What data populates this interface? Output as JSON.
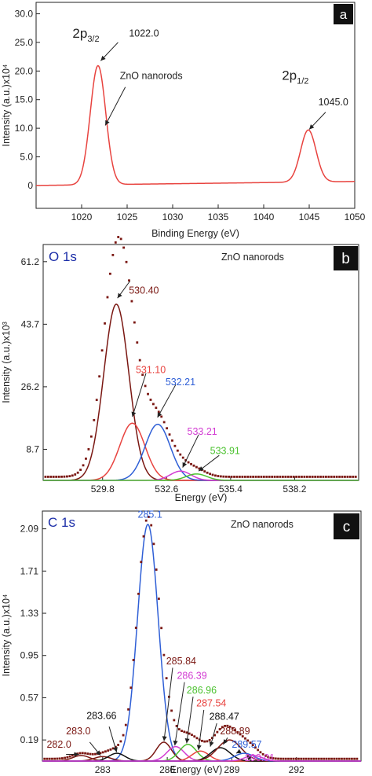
{
  "chart_data": [
    {
      "type": "line",
      "panel_label": "a",
      "xlabel": "Binding Energy (eV)",
      "ylabel": "Intensity (a.u.)x10⁴",
      "xlim": [
        1015,
        1050
      ],
      "ylim": [
        -4,
        32
      ],
      "xticks": [
        1020,
        1025,
        1030,
        1035,
        1040,
        1045,
        1050
      ],
      "yticks": [
        {
          "v": 0,
          "label": "0"
        },
        {
          "v": 5,
          "label": "5.0"
        },
        {
          "v": 10,
          "label": "10.0"
        },
        {
          "v": 15,
          "label": "15.0"
        },
        {
          "v": 20,
          "label": "20.0"
        },
        {
          "v": 25,
          "label": "25.0"
        },
        {
          "v": 30,
          "label": "30.0"
        }
      ],
      "series": [
        {
          "color": "#e8433f",
          "peaks": [
            {
              "center": 1021.8,
              "height": 20.8,
              "sigma": 0.85
            },
            {
              "center": 1044.9,
              "height": 9.1,
              "sigma": 0.85
            }
          ],
          "baseline": [
            [
              1015,
              0.0
            ],
            [
              1050,
              0.7
            ]
          ]
        }
      ],
      "annotations": [
        {
          "text": "2p",
          "sub": "3/2",
          "x": 1019.0,
          "y": 25.8
        },
        {
          "text": "2p",
          "sub": "1/2",
          "x": 1042.0,
          "y": 18.5
        },
        {
          "text": "1022.0",
          "x": 1025.2,
          "y": 26.0
        },
        {
          "text": "ZnO nanorods",
          "x": 1024.2,
          "y": 18.6
        },
        {
          "text": "1045.0",
          "x": 1046.0,
          "y": 14.0
        }
      ],
      "arrows": [
        {
          "from": [
            1024.0,
            25.0
          ],
          "to": [
            1022.1,
            21.8
          ]
        },
        {
          "from": [
            1024.8,
            17.2
          ],
          "to": [
            1022.6,
            10.5
          ]
        },
        {
          "from": [
            1046.8,
            12.8
          ],
          "to": [
            1045.0,
            9.8
          ]
        }
      ]
    },
    {
      "type": "line",
      "panel_label": "b",
      "element_label": "O 1s",
      "sample_label": "ZnO nanorods",
      "xlabel": "Energy (eV)",
      "ylabel": "Intensity (a.u.)x10³",
      "xlim": [
        527.2,
        541.0
      ],
      "ylim": [
        0,
        66
      ],
      "xticks": [
        {
          "v": 529.8,
          "label": "529.8"
        },
        {
          "v": 532.6,
          "label": "532.6"
        },
        {
          "v": 535.4,
          "label": "535.4"
        },
        {
          "v": 538.2,
          "label": "538.2"
        }
      ],
      "yticks": [
        {
          "v": 8.7,
          "label": "8.7"
        },
        {
          "v": 26.2,
          "label": "26.2"
        },
        {
          "v": 43.7,
          "label": "43.7"
        },
        {
          "v": 61.2,
          "label": "61.2"
        }
      ],
      "series": [
        {
          "color": "#7a1712",
          "peaks": [
            {
              "center": 530.4,
              "height": 49.3,
              "sigma": 0.55
            }
          ]
        },
        {
          "color": "#e8433f",
          "peaks": [
            {
              "center": 531.1,
              "height": 16.0,
              "sigma": 0.55
            }
          ]
        },
        {
          "color": "#2f5fd6",
          "peaks": [
            {
              "center": 532.21,
              "height": 15.7,
              "sigma": 0.55
            }
          ]
        },
        {
          "color": "#d23bd2",
          "peaks": [
            {
              "center": 533.21,
              "height": 2.6,
              "sigma": 0.45
            }
          ]
        },
        {
          "color": "#4cc230",
          "peaks": [
            {
              "center": 533.91,
              "height": 1.8,
              "sigma": 0.45
            }
          ]
        }
      ],
      "points": {
        "color": "#7a1712",
        "x_range": [
          527.3,
          540.9
        ],
        "step": 0.118,
        "tail": 1.0,
        "peaks": [
          {
            "center": 530.4,
            "height": 59.0,
            "sigma": 0.6
          },
          {
            "center": 531.1,
            "height": 16.0,
            "sigma": 0.55
          },
          {
            "center": 532.21,
            "height": 15.7,
            "sigma": 0.55
          },
          {
            "center": 533.21,
            "height": 2.6,
            "sigma": 0.45
          },
          {
            "center": 533.91,
            "height": 1.8,
            "sigma": 0.45
          }
        ]
      },
      "annotations": [
        {
          "text": "530.40",
          "x": 530.95,
          "y": 52.2,
          "color": "#7a1712"
        },
        {
          "text": "531.10",
          "x": 531.25,
          "y": 30.0,
          "color": "#e8433f"
        },
        {
          "text": "532.21",
          "x": 532.55,
          "y": 26.6,
          "color": "#2f5fd6"
        },
        {
          "text": "533.21",
          "x": 533.5,
          "y": 12.8,
          "color": "#d23bd2"
        },
        {
          "text": "533.91",
          "x": 534.5,
          "y": 7.4,
          "color": "#4cc230"
        }
      ],
      "arrows": [
        {
          "from": [
            531.0,
            55.8
          ],
          "to": [
            530.45,
            51.0
          ],
          "color": "#222"
        },
        {
          "from": [
            531.7,
            30.0
          ],
          "to": [
            531.1,
            17.8
          ],
          "color": "#222"
        },
        {
          "from": [
            533.0,
            26.8
          ],
          "to": [
            532.2,
            17.6
          ],
          "color": "#222"
        },
        {
          "from": [
            534.0,
            12.8
          ],
          "to": [
            533.3,
            3.6
          ],
          "color": "#222"
        },
        {
          "from": [
            534.9,
            7.0
          ],
          "to": [
            534.0,
            2.6
          ],
          "color": "#222"
        }
      ]
    },
    {
      "type": "line",
      "panel_label": "c",
      "element_label": "C 1s",
      "sample_label": "ZnO nanorods",
      "xlabel": "Energy (eV)",
      "ylabel": "Intensity (a.u.)x10⁴",
      "xlim": [
        280.2,
        295.0
      ],
      "ylim": [
        0,
        2.25
      ],
      "xticks": [
        {
          "v": 283,
          "label": "283"
        },
        {
          "v": 286,
          "label": "286"
        },
        {
          "v": 289,
          "label": "289"
        },
        {
          "v": 292,
          "label": "292"
        }
      ],
      "yticks": [
        {
          "v": 0.19,
          "label": "0.19"
        },
        {
          "v": 0.57,
          "label": "0.57"
        },
        {
          "v": 0.95,
          "label": "0.95"
        },
        {
          "v": 1.33,
          "label": "1.33"
        },
        {
          "v": 1.71,
          "label": "1.71"
        },
        {
          "v": 2.09,
          "label": "2.09"
        }
      ],
      "series": [
        {
          "color": "#2f5fd6",
          "peaks": [
            {
              "center": 285.1,
              "height": 2.13,
              "sigma": 0.48
            }
          ]
        },
        {
          "color": "#7a1712",
          "peaks": [
            {
              "center": 282.0,
              "height": 0.05,
              "sigma": 0.4
            }
          ]
        },
        {
          "color": "#7a1712",
          "peaks": [
            {
              "center": 283.0,
              "height": 0.04,
              "sigma": 0.4
            }
          ]
        },
        {
          "color": "#111111",
          "peaks": [
            {
              "center": 283.66,
              "height": 0.07,
              "sigma": 0.38
            }
          ]
        },
        {
          "color": "#7a1712",
          "peaks": [
            {
              "center": 285.84,
              "height": 0.17,
              "sigma": 0.35
            }
          ]
        },
        {
          "color": "#d23bd2",
          "peaks": [
            {
              "center": 286.39,
              "height": 0.13,
              "sigma": 0.4
            }
          ]
        },
        {
          "color": "#4cc230",
          "peaks": [
            {
              "center": 286.96,
              "height": 0.15,
              "sigma": 0.4
            }
          ]
        },
        {
          "color": "#e8433f",
          "peaks": [
            {
              "center": 287.54,
              "height": 0.09,
              "sigma": 0.4
            }
          ]
        },
        {
          "color": "#111111",
          "peaks": [
            {
              "center": 288.47,
              "height": 0.12,
              "sigma": 0.45
            }
          ]
        },
        {
          "color": "#7a1712",
          "peaks": [
            {
              "center": 288.89,
              "height": 0.19,
              "sigma": 0.55
            }
          ]
        },
        {
          "color": "#2f5fd6",
          "peaks": [
            {
              "center": 289.57,
              "height": 0.07,
              "sigma": 0.45
            }
          ]
        },
        {
          "color": "#d23bd2",
          "peaks": [
            {
              "center": 290.01,
              "height": 0.05,
              "sigma": 0.4
            }
          ]
        }
      ],
      "points": {
        "color": "#7a1712",
        "x_range": [
          280.3,
          294.9
        ],
        "step": 0.118,
        "tail": 0.02,
        "peaks": [
          {
            "center": 282.0,
            "height": 0.05,
            "sigma": 0.4
          },
          {
            "center": 283.0,
            "height": 0.04,
            "sigma": 0.4
          },
          {
            "center": 283.66,
            "height": 0.07,
            "sigma": 0.38
          },
          {
            "center": 285.1,
            "height": 2.16,
            "sigma": 0.5
          },
          {
            "center": 285.84,
            "height": 0.17,
            "sigma": 0.35
          },
          {
            "center": 286.39,
            "height": 0.13,
            "sigma": 0.4
          },
          {
            "center": 286.96,
            "height": 0.15,
            "sigma": 0.4
          },
          {
            "center": 287.54,
            "height": 0.09,
            "sigma": 0.4
          },
          {
            "center": 288.47,
            "height": 0.12,
            "sigma": 0.45
          },
          {
            "center": 288.89,
            "height": 0.19,
            "sigma": 0.55
          },
          {
            "center": 289.57,
            "height": 0.07,
            "sigma": 0.45
          },
          {
            "center": 290.01,
            "height": 0.05,
            "sigma": 0.4
          }
        ]
      },
      "annotations": [
        {
          "text": "285.1",
          "x": 285.2,
          "y": 2.19,
          "color": "#2f5fd6",
          "anchor": "middle"
        },
        {
          "text": "285.84",
          "x": 285.95,
          "y": 0.87,
          "color": "#7a1712"
        },
        {
          "text": "286.39",
          "x": 286.45,
          "y": 0.74,
          "color": "#d23bd2"
        },
        {
          "text": "286.96",
          "x": 286.9,
          "y": 0.61,
          "color": "#4cc230"
        },
        {
          "text": "287.54",
          "x": 287.35,
          "y": 0.49,
          "color": "#e8433f"
        },
        {
          "text": "288.47",
          "x": 287.95,
          "y": 0.37,
          "color": "#111111"
        },
        {
          "text": "288.89",
          "x": 288.45,
          "y": 0.24,
          "color": "#7a1712"
        },
        {
          "text": "289.57",
          "x": 289.0,
          "y": 0.12,
          "color": "#2f5fd6"
        },
        {
          "text": "290.01",
          "x": 289.6,
          "y": 0.0,
          "color": "#d23bd2"
        },
        {
          "text": "283.66",
          "x": 282.25,
          "y": 0.38,
          "color": "#111111"
        },
        {
          "text": "283.0",
          "x": 281.3,
          "y": 0.24,
          "color": "#7a1712"
        },
        {
          "text": "282.0",
          "x": 280.4,
          "y": 0.12,
          "color": "#7a1712"
        }
      ],
      "arrows": [
        {
          "from": [
            286.25,
            0.84
          ],
          "to": [
            285.85,
            0.18
          ],
          "color": "#222"
        },
        {
          "from": [
            286.8,
            0.71
          ],
          "to": [
            286.35,
            0.14
          ],
          "color": "#222"
        },
        {
          "from": [
            287.2,
            0.58
          ],
          "to": [
            286.9,
            0.16
          ],
          "color": "#222"
        },
        {
          "from": [
            287.7,
            0.46
          ],
          "to": [
            287.45,
            0.1
          ],
          "color": "#222"
        },
        {
          "from": [
            288.3,
            0.34
          ],
          "to": [
            288.0,
            0.13
          ],
          "color": "#222"
        },
        {
          "from": [
            288.8,
            0.21
          ],
          "to": [
            288.6,
            0.15
          ],
          "color": "#222"
        },
        {
          "from": [
            289.4,
            0.09
          ],
          "to": [
            289.2,
            0.07
          ],
          "color": "#222"
        },
        {
          "from": [
            289.95,
            0.0
          ],
          "to": [
            289.7,
            0.05
          ],
          "color": "#222"
        },
        {
          "from": [
            283.3,
            0.31
          ],
          "to": [
            283.65,
            0.08
          ],
          "color": "#222"
        },
        {
          "from": [
            282.4,
            0.17
          ],
          "to": [
            282.9,
            0.05
          ],
          "color": "#222"
        },
        {
          "from": [
            281.3,
            0.06
          ],
          "to": [
            281.9,
            0.06
          ],
          "color": "#222"
        }
      ]
    }
  ]
}
